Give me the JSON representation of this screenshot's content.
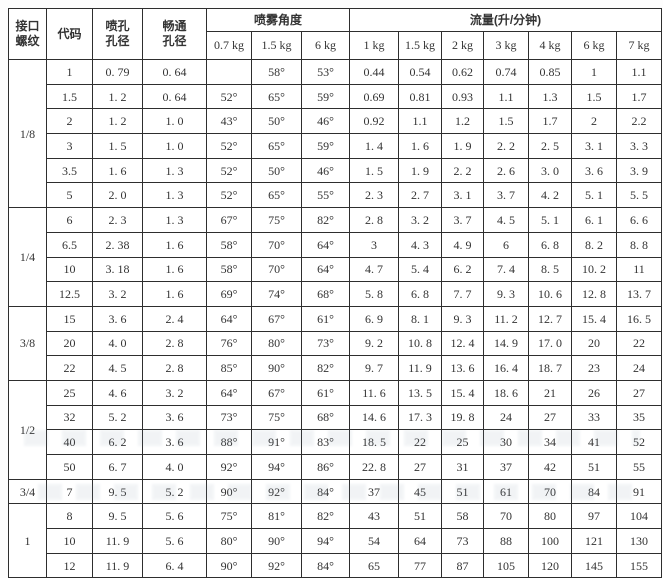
{
  "table": {
    "header": {
      "thread": "接口\n螺纹",
      "code": "代码",
      "orifice": "喷孔\n孔径",
      "clear": "畅通\n孔径",
      "angle_group": "喷雾角度",
      "flow_group": "流量(升/分钟)",
      "angle_cols": [
        "0.7 kg",
        "1.5 kg",
        "6 kg"
      ],
      "flow_cols": [
        "1 kg",
        "1.5 kg",
        "2 kg",
        "3 kg",
        "4 kg",
        "6 kg",
        "7 kg"
      ]
    },
    "groups": [
      {
        "thread": "1/8",
        "rows": [
          {
            "code": "1",
            "orifice": "0. 79",
            "clear": "0. 64",
            "angles": [
              "",
              "58°",
              "53°"
            ],
            "flows": [
              "0.44",
              "0.54",
              "0.62",
              "0.74",
              "0.85",
              "1",
              "1.1"
            ]
          },
          {
            "code": "1.5",
            "orifice": "1. 2",
            "clear": "0. 64",
            "angles": [
              "52°",
              "65°",
              "59°"
            ],
            "flows": [
              "0.69",
              "0.81",
              "0.93",
              "1.1",
              "1.3",
              "1.5",
              "1.7"
            ]
          },
          {
            "code": "2",
            "orifice": "1. 2",
            "clear": "1. 0",
            "angles": [
              "43°",
              "50°",
              "46°"
            ],
            "flows": [
              "0.92",
              "1.1",
              "1.2",
              "1.5",
              "1.7",
              "2",
              "2.2"
            ]
          },
          {
            "code": "3",
            "orifice": "1. 5",
            "clear": "1. 0",
            "angles": [
              "52°",
              "65°",
              "59°"
            ],
            "flows": [
              "1. 4",
              "1. 6",
              "1. 9",
              "2. 2",
              "2. 5",
              "3. 1",
              "3. 3"
            ]
          },
          {
            "code": "3.5",
            "orifice": "1. 6",
            "clear": "1. 3",
            "angles": [
              "52°",
              "50°",
              "46°"
            ],
            "flows": [
              "1. 5",
              "1. 9",
              "2. 2",
              "2. 6",
              "3. 0",
              "3. 6",
              "3. 9"
            ]
          },
          {
            "code": "5",
            "orifice": "2. 0",
            "clear": "1. 3",
            "angles": [
              "52°",
              "65°",
              "55°"
            ],
            "flows": [
              "2. 3",
              "2. 7",
              "3. 1",
              "3. 7",
              "4. 2",
              "5. 1",
              "5. 5"
            ]
          }
        ]
      },
      {
        "thread": "1/4",
        "rows": [
          {
            "code": "6",
            "orifice": "2. 3",
            "clear": "1. 3",
            "angles": [
              "67°",
              "75°",
              "82°"
            ],
            "flows": [
              "2. 8",
              "3. 2",
              "3. 7",
              "4. 5",
              "5. 1",
              "6. 1",
              "6. 6"
            ]
          },
          {
            "code": "6.5",
            "orifice": "2. 38",
            "clear": "1. 6",
            "angles": [
              "58°",
              "70°",
              "64°"
            ],
            "flows": [
              "3",
              "4. 3",
              "4. 9",
              "6",
              "6. 8",
              "8. 2",
              "8. 8"
            ]
          },
          {
            "code": "10",
            "orifice": "3. 18",
            "clear": "1. 6",
            "angles": [
              "58°",
              "70°",
              "64°"
            ],
            "flows": [
              "4. 7",
              "5. 4",
              "6. 2",
              "7. 4",
              "8. 5",
              "10. 2",
              "11"
            ]
          },
          {
            "code": "12.5",
            "orifice": "3. 2",
            "clear": "1. 6",
            "angles": [
              "69°",
              "74°",
              "68°"
            ],
            "flows": [
              "5. 8",
              "6. 8",
              "7. 7",
              "9. 3",
              "10. 6",
              "12. 8",
              "13. 7"
            ]
          }
        ]
      },
      {
        "thread": "3/8",
        "rows": [
          {
            "code": "15",
            "orifice": "3. 6",
            "clear": "2. 4",
            "angles": [
              "64°",
              "67°",
              "61°"
            ],
            "flows": [
              "6. 9",
              "8. 1",
              "9. 3",
              "11. 2",
              "12. 7",
              "15. 4",
              "16. 5"
            ]
          },
          {
            "code": "20",
            "orifice": "4. 0",
            "clear": "2. 8",
            "angles": [
              "76°",
              "80°",
              "73°"
            ],
            "flows": [
              "9. 2",
              "10. 8",
              "12. 4",
              "14. 9",
              "17. 0",
              "20",
              "22"
            ]
          },
          {
            "code": "22",
            "orifice": "4. 5",
            "clear": "2. 8",
            "angles": [
              "85°",
              "90°",
              "82°"
            ],
            "flows": [
              "9. 7",
              "11. 9",
              "13. 6",
              "16. 4",
              "18. 7",
              "23",
              "24"
            ]
          }
        ]
      },
      {
        "thread": "1/2",
        "rows": [
          {
            "code": "25",
            "orifice": "4. 6",
            "clear": "3. 2",
            "angles": [
              "64°",
              "67°",
              "61°"
            ],
            "flows": [
              "11. 6",
              "13. 5",
              "15. 4",
              "18. 6",
              "21",
              "26",
              "27"
            ]
          },
          {
            "code": "32",
            "orifice": "5. 2",
            "clear": "3. 6",
            "angles": [
              "73°",
              "75°",
              "68°"
            ],
            "flows": [
              "14. 6",
              "17. 3",
              "19. 8",
              "24",
              "27",
              "33",
              "35"
            ]
          },
          {
            "code": "40",
            "orifice": "6. 2",
            "clear": "3. 6",
            "angles": [
              "88°",
              "91°",
              "83°"
            ],
            "flows": [
              "18. 5",
              "22",
              "25",
              "30",
              "34",
              "41",
              "52"
            ]
          },
          {
            "code": "50",
            "orifice": "6. 7",
            "clear": "4. 0",
            "angles": [
              "92°",
              "94°",
              "86°"
            ],
            "flows": [
              "22. 8",
              "27",
              "31",
              "37",
              "42",
              "51",
              "55"
            ]
          }
        ]
      },
      {
        "thread": "3/4",
        "rows": [
          {
            "code": "7",
            "orifice": "9. 5",
            "clear": "5. 2",
            "angles": [
              "90°",
              "92°",
              "84°"
            ],
            "flows": [
              "37",
              "45",
              "51",
              "61",
              "70",
              "84",
              "91"
            ]
          }
        ]
      },
      {
        "thread": "1",
        "rows": [
          {
            "code": "8",
            "orifice": "9. 5",
            "clear": "5. 6",
            "angles": [
              "75°",
              "81°",
              "82°"
            ],
            "flows": [
              "43",
              "51",
              "58",
              "70",
              "80",
              "97",
              "104"
            ]
          },
          {
            "code": "10",
            "orifice": "11. 9",
            "clear": "5. 6",
            "angles": [
              "80°",
              "90°",
              "94°"
            ],
            "flows": [
              "54",
              "64",
              "73",
              "88",
              "100",
              "121",
              "130"
            ]
          },
          {
            "code": "12",
            "orifice": "11. 9",
            "clear": "6. 4",
            "angles": [
              "90°",
              "92°",
              "84°"
            ],
            "flows": [
              "65",
              "77",
              "87",
              "105",
              "120",
              "145",
              "155"
            ]
          }
        ]
      }
    ]
  }
}
